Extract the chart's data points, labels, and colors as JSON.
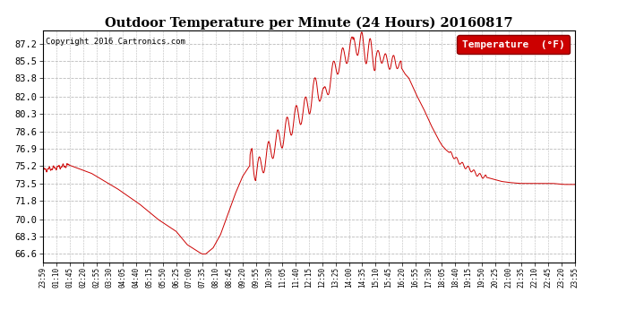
{
  "title": "Outdoor Temperature per Minute (24 Hours) 20160817",
  "copyright": "Copyright 2016 Cartronics.com",
  "legend_label": "Temperature  (°F)",
  "line_color": "#cc0000",
  "background_color": "#ffffff",
  "grid_color": "#bbbbbb",
  "yticks": [
    66.6,
    68.3,
    70.0,
    71.8,
    73.5,
    75.2,
    76.9,
    78.6,
    80.3,
    82.0,
    83.8,
    85.5,
    87.2
  ],
  "ylim": [
    65.8,
    88.5
  ],
  "x_labels": [
    "23:59",
    "01:10",
    "01:45",
    "02:20",
    "02:55",
    "03:30",
    "04:05",
    "04:40",
    "05:15",
    "05:50",
    "06:25",
    "07:00",
    "07:35",
    "08:10",
    "08:45",
    "09:20",
    "09:55",
    "10:30",
    "11:05",
    "11:40",
    "12:15",
    "12:50",
    "13:25",
    "14:00",
    "14:35",
    "15:10",
    "15:45",
    "16:20",
    "16:55",
    "17:30",
    "18:05",
    "18:40",
    "19:15",
    "19:50",
    "20:25",
    "21:00",
    "21:35",
    "22:10",
    "22:45",
    "23:20",
    "23:55"
  ],
  "key_points": [
    [
      0,
      74.8
    ],
    [
      70,
      75.3
    ],
    [
      130,
      74.5
    ],
    [
      200,
      73.0
    ],
    [
      260,
      71.5
    ],
    [
      310,
      70.0
    ],
    [
      360,
      68.8
    ],
    [
      390,
      67.5
    ],
    [
      420,
      66.8
    ],
    [
      430,
      66.6
    ],
    [
      440,
      66.6
    ],
    [
      460,
      67.2
    ],
    [
      480,
      68.5
    ],
    [
      500,
      70.5
    ],
    [
      520,
      72.5
    ],
    [
      540,
      74.2
    ],
    [
      560,
      75.3
    ],
    [
      565,
      76.8
    ],
    [
      570,
      75.5
    ],
    [
      575,
      74.5
    ],
    [
      580,
      74.8
    ],
    [
      590,
      75.3
    ],
    [
      600,
      75.8
    ],
    [
      610,
      76.5
    ],
    [
      620,
      77.0
    ],
    [
      640,
      77.8
    ],
    [
      660,
      78.8
    ],
    [
      680,
      79.8
    ],
    [
      700,
      80.5
    ],
    [
      720,
      81.2
    ],
    [
      730,
      82.5
    ],
    [
      740,
      83.0
    ],
    [
      750,
      82.5
    ],
    [
      760,
      81.8
    ],
    [
      770,
      83.0
    ],
    [
      780,
      84.0
    ],
    [
      790,
      84.8
    ],
    [
      800,
      85.3
    ],
    [
      810,
      85.8
    ],
    [
      820,
      86.0
    ],
    [
      830,
      86.8
    ],
    [
      840,
      87.0
    ],
    [
      850,
      87.2
    ],
    [
      860,
      87.0
    ],
    [
      870,
      86.8
    ],
    [
      880,
      86.5
    ],
    [
      890,
      86.0
    ],
    [
      900,
      85.8
    ],
    [
      910,
      86.0
    ],
    [
      920,
      85.8
    ],
    [
      930,
      85.5
    ],
    [
      940,
      85.2
    ],
    [
      950,
      85.5
    ],
    [
      960,
      85.3
    ],
    [
      970,
      84.8
    ],
    [
      980,
      84.2
    ],
    [
      990,
      83.8
    ],
    [
      1000,
      83.0
    ],
    [
      1010,
      82.2
    ],
    [
      1020,
      81.5
    ],
    [
      1030,
      80.8
    ],
    [
      1040,
      80.0
    ],
    [
      1050,
      79.2
    ],
    [
      1060,
      78.5
    ],
    [
      1070,
      77.8
    ],
    [
      1080,
      77.2
    ],
    [
      1090,
      76.8
    ],
    [
      1100,
      76.5
    ],
    [
      1110,
      76.2
    ],
    [
      1120,
      75.8
    ],
    [
      1130,
      75.5
    ],
    [
      1140,
      75.2
    ],
    [
      1150,
      75.0
    ],
    [
      1160,
      74.8
    ],
    [
      1170,
      74.5
    ],
    [
      1180,
      74.3
    ],
    [
      1190,
      74.2
    ],
    [
      1200,
      74.1
    ],
    [
      1210,
      74.0
    ],
    [
      1220,
      73.9
    ],
    [
      1230,
      73.8
    ],
    [
      1240,
      73.7
    ],
    [
      1260,
      73.6
    ],
    [
      1290,
      73.5
    ],
    [
      1320,
      73.5
    ],
    [
      1350,
      73.5
    ],
    [
      1380,
      73.5
    ],
    [
      1410,
      73.4
    ],
    [
      1439,
      73.4
    ]
  ]
}
